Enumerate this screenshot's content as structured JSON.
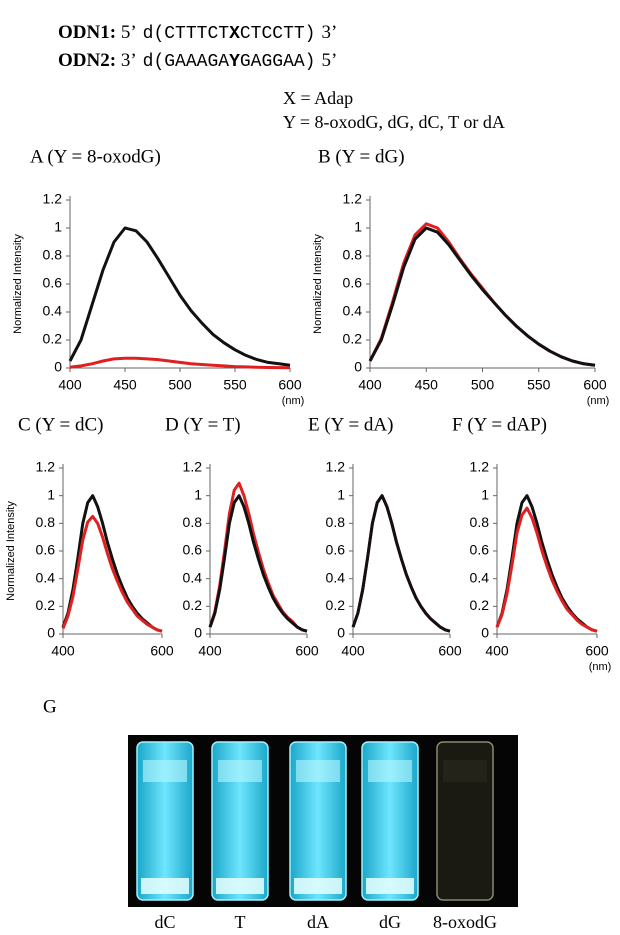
{
  "header": {
    "odn1": {
      "label": "ODN1:",
      "start": "5’",
      "before": "d(CTTTCT",
      "base": "X",
      "after": "CTCCTT)",
      "end": "3’"
    },
    "odn2": {
      "label": "ODN2:",
      "start": "3’",
      "before": "d(GAAAGA",
      "base": "Y",
      "after": "GAGGAA)",
      "end": "5’"
    },
    "notes": [
      "X = Adap",
      "Y = 8-oxodG, dG, dC, T or dA"
    ]
  },
  "chart_data": [
    {
      "type": "line",
      "title": "A (Y = 8-oxodG)",
      "ylabel": "Normalized Intensity",
      "xlabel": "(nm)",
      "x": [
        400,
        410,
        420,
        430,
        440,
        450,
        460,
        470,
        480,
        490,
        500,
        510,
        520,
        530,
        540,
        550,
        560,
        570,
        580,
        590,
        600
      ],
      "series": [
        {
          "color": "#111111",
          "values": [
            0.05,
            0.2,
            0.45,
            0.7,
            0.9,
            1.0,
            0.98,
            0.9,
            0.78,
            0.65,
            0.52,
            0.41,
            0.32,
            0.24,
            0.18,
            0.13,
            0.09,
            0.06,
            0.04,
            0.03,
            0.02
          ]
        },
        {
          "color": "#e02020",
          "values": [
            0.005,
            0.015,
            0.03,
            0.05,
            0.065,
            0.07,
            0.07,
            0.065,
            0.06,
            0.05,
            0.04,
            0.03,
            0.025,
            0.02,
            0.015,
            0.01,
            0.008,
            0.005,
            0.004,
            0.003,
            0.002
          ]
        }
      ],
      "xlim": [
        400,
        600
      ],
      "xticks": [
        400,
        450,
        500,
        550,
        600
      ],
      "ylim": [
        0,
        1.2
      ],
      "yticks": [
        0,
        0.2,
        0.4,
        0.6,
        0.8,
        1,
        1.2
      ]
    },
    {
      "type": "line",
      "title": "B (Y = dG)",
      "ylabel": "Normalized Intensity",
      "xlabel": "(nm)",
      "x": [
        400,
        410,
        420,
        430,
        440,
        450,
        460,
        470,
        480,
        490,
        500,
        510,
        520,
        530,
        540,
        550,
        560,
        570,
        580,
        590,
        600
      ],
      "series": [
        {
          "color": "#e02020",
          "values": [
            0.05,
            0.21,
            0.47,
            0.75,
            0.95,
            1.03,
            1.0,
            0.9,
            0.78,
            0.67,
            0.57,
            0.47,
            0.38,
            0.3,
            0.23,
            0.17,
            0.12,
            0.08,
            0.05,
            0.03,
            0.02
          ]
        },
        {
          "color": "#111111",
          "values": [
            0.05,
            0.2,
            0.45,
            0.72,
            0.92,
            1.0,
            0.97,
            0.88,
            0.77,
            0.66,
            0.56,
            0.47,
            0.38,
            0.3,
            0.23,
            0.17,
            0.12,
            0.08,
            0.05,
            0.03,
            0.02
          ]
        }
      ],
      "xlim": [
        400,
        600
      ],
      "xticks": [
        400,
        450,
        500,
        550,
        600
      ],
      "ylim": [
        0,
        1.2
      ],
      "yticks": [
        0,
        0.2,
        0.4,
        0.6,
        0.8,
        1,
        1.2
      ]
    },
    {
      "type": "line",
      "title": "C (Y = dC)",
      "ylabel": "Normalized Intensity",
      "x": [
        400,
        410,
        420,
        430,
        440,
        450,
        460,
        470,
        480,
        490,
        500,
        510,
        520,
        530,
        540,
        550,
        560,
        570,
        580,
        590,
        600
      ],
      "series": [
        {
          "color": "#111111",
          "values": [
            0.05,
            0.15,
            0.32,
            0.55,
            0.8,
            0.95,
            1.0,
            0.92,
            0.8,
            0.66,
            0.54,
            0.43,
            0.34,
            0.26,
            0.2,
            0.15,
            0.11,
            0.08,
            0.05,
            0.03,
            0.02
          ]
        },
        {
          "color": "#e02020",
          "values": [
            0.04,
            0.13,
            0.27,
            0.47,
            0.68,
            0.81,
            0.85,
            0.8,
            0.7,
            0.58,
            0.47,
            0.38,
            0.3,
            0.23,
            0.18,
            0.13,
            0.1,
            0.07,
            0.05,
            0.03,
            0.02
          ]
        }
      ],
      "xlim": [
        400,
        600
      ],
      "xticks": [
        400,
        600
      ],
      "ylim": [
        0,
        1.2
      ],
      "yticks": [
        0,
        0.2,
        0.4,
        0.6,
        0.8,
        1,
        1.2
      ]
    },
    {
      "type": "line",
      "title": "D (Y = T)",
      "x": [
        400,
        410,
        420,
        430,
        440,
        450,
        460,
        470,
        480,
        490,
        500,
        510,
        520,
        530,
        540,
        550,
        560,
        570,
        580,
        590,
        600
      ],
      "series": [
        {
          "color": "#e02020",
          "values": [
            0.05,
            0.16,
            0.35,
            0.6,
            0.87,
            1.04,
            1.09,
            1.0,
            0.87,
            0.72,
            0.59,
            0.47,
            0.37,
            0.28,
            0.22,
            0.16,
            0.12,
            0.09,
            0.05,
            0.03,
            0.02
          ]
        },
        {
          "color": "#111111",
          "values": [
            0.05,
            0.15,
            0.32,
            0.55,
            0.8,
            0.95,
            1.0,
            0.92,
            0.8,
            0.66,
            0.54,
            0.43,
            0.34,
            0.26,
            0.2,
            0.15,
            0.11,
            0.08,
            0.05,
            0.03,
            0.02
          ]
        }
      ],
      "xlim": [
        400,
        600
      ],
      "xticks": [
        400,
        600
      ],
      "ylim": [
        0,
        1.2
      ],
      "yticks": [
        0,
        0.2,
        0.4,
        0.6,
        0.8,
        1,
        1.2
      ]
    },
    {
      "type": "line",
      "title": "E (Y = dA)",
      "x": [
        400,
        410,
        420,
        430,
        440,
        450,
        460,
        470,
        480,
        490,
        500,
        510,
        520,
        530,
        540,
        550,
        560,
        570,
        580,
        590,
        600
      ],
      "series": [
        {
          "color": "#e02020",
          "values": [
            0.05,
            0.15,
            0.32,
            0.55,
            0.8,
            0.95,
            1.0,
            0.92,
            0.8,
            0.66,
            0.54,
            0.43,
            0.34,
            0.26,
            0.2,
            0.15,
            0.11,
            0.08,
            0.05,
            0.03,
            0.02
          ]
        },
        {
          "color": "#111111",
          "values": [
            0.05,
            0.15,
            0.32,
            0.55,
            0.8,
            0.95,
            1.0,
            0.92,
            0.8,
            0.66,
            0.54,
            0.43,
            0.34,
            0.26,
            0.2,
            0.15,
            0.11,
            0.08,
            0.05,
            0.03,
            0.02
          ]
        }
      ],
      "xlim": [
        400,
        600
      ],
      "xticks": [
        400,
        600
      ],
      "ylim": [
        0,
        1.2
      ],
      "yticks": [
        0,
        0.2,
        0.4,
        0.6,
        0.8,
        1,
        1.2
      ]
    },
    {
      "type": "line",
      "title": "F (Y = dAP)",
      "xlabel": "(nm)",
      "x": [
        400,
        410,
        420,
        430,
        440,
        450,
        460,
        470,
        480,
        490,
        500,
        510,
        520,
        530,
        540,
        550,
        560,
        570,
        580,
        590,
        600
      ],
      "series": [
        {
          "color": "#111111",
          "values": [
            0.05,
            0.15,
            0.32,
            0.55,
            0.8,
            0.95,
            1.0,
            0.92,
            0.8,
            0.66,
            0.54,
            0.43,
            0.34,
            0.26,
            0.2,
            0.15,
            0.11,
            0.08,
            0.05,
            0.03,
            0.02
          ]
        },
        {
          "color": "#e02020",
          "values": [
            0.05,
            0.14,
            0.29,
            0.5,
            0.73,
            0.86,
            0.91,
            0.84,
            0.73,
            0.6,
            0.49,
            0.39,
            0.31,
            0.24,
            0.18,
            0.14,
            0.1,
            0.07,
            0.05,
            0.03,
            0.02
          ]
        }
      ],
      "xlim": [
        400,
        600
      ],
      "xticks": [
        400,
        600
      ],
      "ylim": [
        0,
        1.2
      ],
      "yticks": [
        0,
        0.2,
        0.4,
        0.6,
        0.8,
        1,
        1.2
      ]
    }
  ],
  "panel_g": {
    "label": "G",
    "tubes": [
      "dC",
      "T",
      "dA",
      "dG",
      "8-oxodG"
    ]
  }
}
